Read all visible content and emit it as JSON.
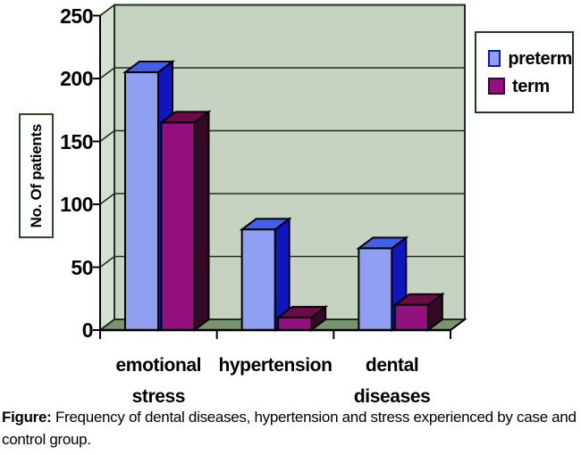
{
  "figure": {
    "caption_prefix": "Figure:",
    "caption_text": "Frequency of dental diseases, hypertension and stress experienced by case and control group."
  },
  "chart_data": {
    "type": "bar",
    "style": "3d-clustered",
    "title": "",
    "xlabel": "",
    "ylabel": "No. Of patients",
    "categories": [
      "emotional\nstress",
      "hypertension",
      "dental\ndiseases"
    ],
    "series": [
      {
        "name": "preterm",
        "values": [
          205,
          80,
          65
        ],
        "front_color": "#8f9ff2",
        "top_color": "#4360ea",
        "side_color": "#1016bd"
      },
      {
        "name": "term",
        "values": [
          165,
          10,
          20
        ],
        "front_color": "#92107f",
        "top_color": "#6b0a48",
        "side_color": "#340928"
      }
    ],
    "ylim": [
      0,
      250
    ],
    "yticks": [
      0,
      50,
      100,
      150,
      200,
      250
    ],
    "grid": true,
    "legend": {
      "position": "top-right",
      "labels": [
        "preterm",
        "term"
      ]
    },
    "colors": {
      "background": "#ffffff",
      "wall": "#c6d2c2",
      "side_wall": "#d7e1d1",
      "floor": "#7a946e",
      "grid_line": "#1d301d",
      "axis": "#000000",
      "text": "#000000",
      "legend_border": "#243a24"
    }
  }
}
